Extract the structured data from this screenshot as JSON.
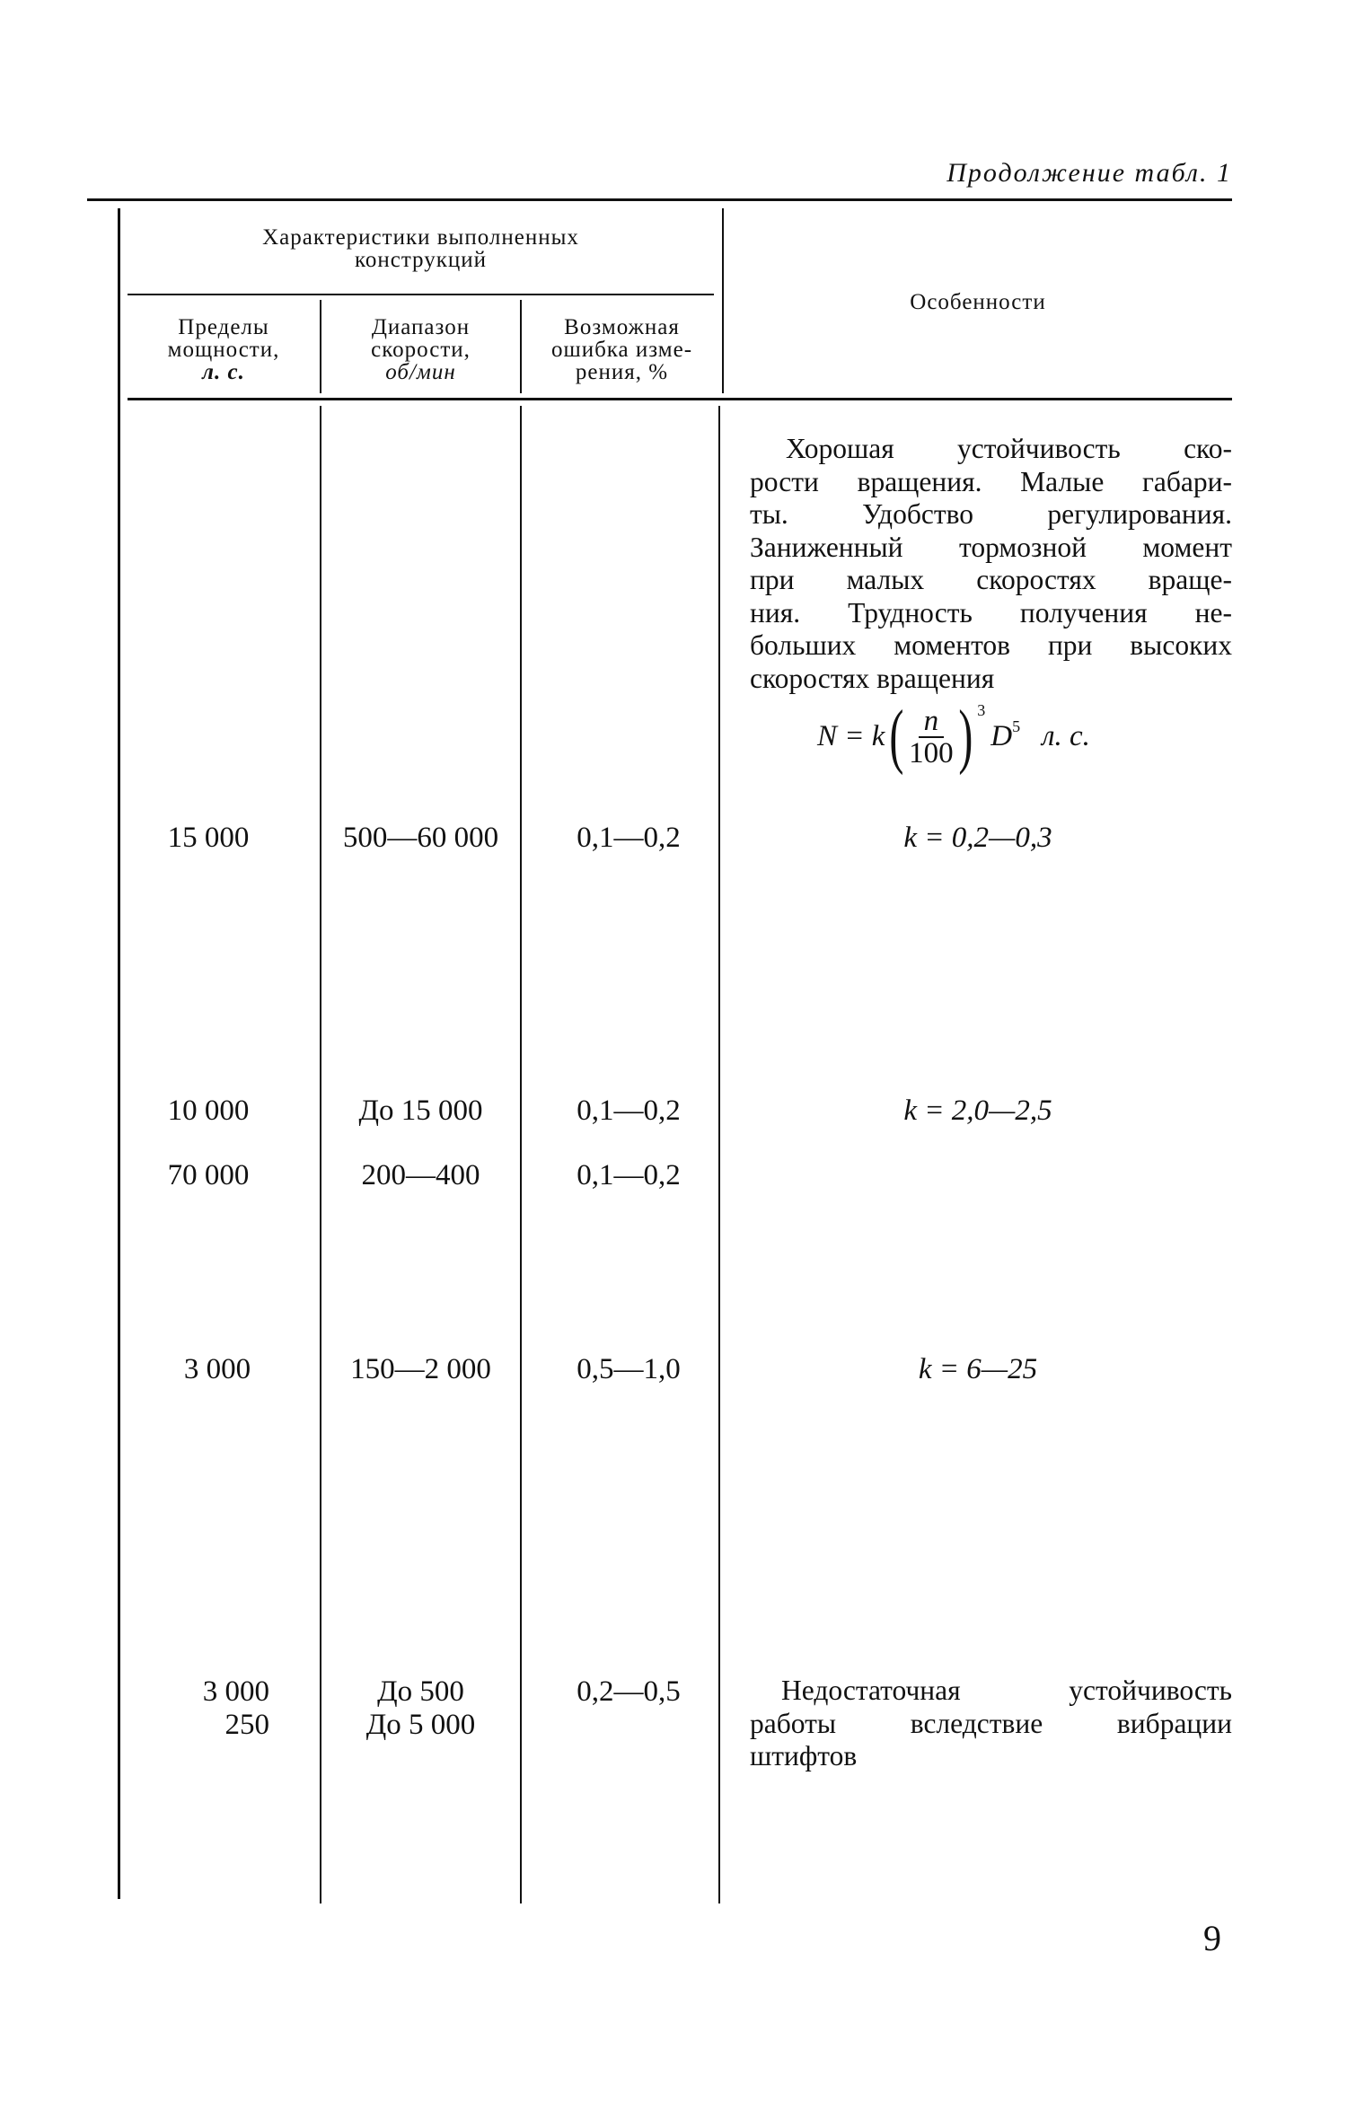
{
  "running_head": "Продолжение табл. 1",
  "page_number": "9",
  "table": {
    "group_header": [
      "Характеристики выполненных",
      "конструкций"
    ],
    "columns": [
      {
        "lines": [
          "Пределы",
          "мощности,"
        ],
        "unit": "л. с."
      },
      {
        "lines": [
          "Диапазон",
          "скорости,"
        ],
        "unit": "об/мин"
      },
      {
        "lines": [
          "Возможная",
          "ошибка изме-",
          "рения, %"
        ]
      }
    ],
    "features_header": "Особенности",
    "first_feature_lines": [
      "Хорошая устойчивость ско-",
      "рости вращения. Малые габари-",
      "ты. Удобство регулирования.",
      "Заниженный тормозной момент",
      "при малых скоростях враще-",
      "ния. Трудность получения не-",
      "больших моментов при высоких",
      "скоростях вращения"
    ],
    "formula": {
      "lhs": "N = k",
      "numerator": "n",
      "denominator": "100",
      "exponent": "3",
      "tail": "D",
      "tail_exp": "5",
      "unit": "л. с."
    },
    "rows": [
      {
        "power": "15 000",
        "speed": "500—60 000",
        "error": "0,1—0,2",
        "feature": "k = 0,2—0,3"
      },
      {
        "power": "10 000",
        "speed": "До 15 000",
        "error": "0,1—0,2",
        "feature": "k = 2,0—2,5"
      },
      {
        "power": "70 000",
        "speed": "200—400",
        "error": "0,1—0,2",
        "feature": ""
      },
      {
        "power": "3 000",
        "speed": "150—2 000",
        "error": "0,5—1,0",
        "feature": "k = 6—25"
      },
      {
        "power": "3 000",
        "speed": "До 500",
        "error": "0,2—0,5",
        "feature": ""
      },
      {
        "power": "250",
        "speed": "До 5 000",
        "error": "",
        "feature": ""
      }
    ],
    "last_feature_lines": [
      "Недостаточная устойчивость",
      "работы вследствие вибрации",
      "штифтов"
    ]
  }
}
